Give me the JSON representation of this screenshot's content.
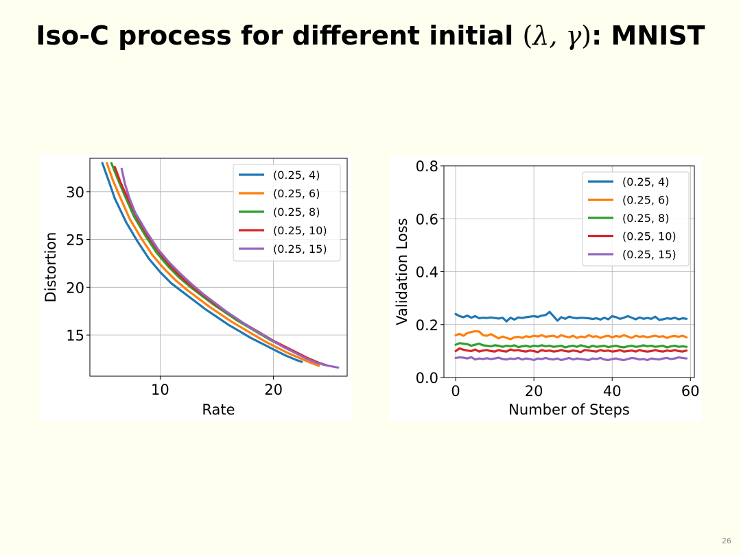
{
  "slide": {
    "title_prefix": "Iso-C process for different initial ",
    "title_math_open": "(",
    "title_math_vars": "λ, γ",
    "title_math_close": ")",
    "title_suffix": ": MNIST",
    "page_number": "26"
  },
  "colors": [
    "#1f77b4",
    "#ff7f0e",
    "#2ca02c",
    "#d62728",
    "#9467bd"
  ],
  "chart_data": [
    {
      "type": "line",
      "title": "",
      "xlabel": "Rate",
      "ylabel": "Distortion",
      "xlim": [
        3.8,
        26.5
      ],
      "ylim": [
        10.7,
        33.5
      ],
      "xticks": [
        10,
        20
      ],
      "yticks": [
        15,
        20,
        25,
        30
      ],
      "grid": true,
      "legend_position": "top-right",
      "series": [
        {
          "name": "(0.25, 4)",
          "x": [
            4.9,
            5.5,
            6.0,
            7.0,
            8.0,
            9.0,
            10.0,
            11.0,
            12.0,
            13.0,
            14.0,
            15.0,
            16.0,
            17.0,
            18.0,
            19.0,
            20.0,
            21.0,
            22.0,
            22.5
          ],
          "y": [
            33.0,
            31.0,
            29.3,
            26.8,
            24.8,
            23.0,
            21.6,
            20.4,
            19.5,
            18.6,
            17.7,
            16.9,
            16.1,
            15.4,
            14.7,
            14.1,
            13.5,
            12.9,
            12.4,
            12.2
          ]
        },
        {
          "name": "(0.25, 6)",
          "x": [
            5.3,
            5.8,
            6.4,
            7.3,
            8.3,
            9.3,
            10.3,
            11.3,
            12.3,
            13.3,
            14.3,
            15.3,
            16.3,
            17.3,
            18.3,
            19.3,
            20.3,
            21.3,
            22.3,
            23.3,
            24.0
          ],
          "y": [
            33.0,
            31.3,
            29.6,
            27.2,
            25.2,
            23.4,
            22.0,
            20.8,
            19.8,
            18.9,
            18.0,
            17.2,
            16.4,
            15.7,
            15.0,
            14.3,
            13.7,
            13.1,
            12.6,
            12.1,
            11.8
          ]
        },
        {
          "name": "(0.25, 8)",
          "x": [
            5.7,
            6.2,
            6.8,
            7.7,
            8.7,
            9.7,
            10.7,
            11.7,
            12.7,
            13.7,
            14.7,
            15.7,
            16.7,
            17.7,
            18.7,
            19.7,
            20.7,
            21.7,
            22.7,
            23.7,
            24.4
          ],
          "y": [
            33.0,
            31.5,
            29.8,
            27.4,
            25.4,
            23.6,
            22.2,
            21.0,
            20.0,
            19.1,
            18.2,
            17.4,
            16.6,
            15.9,
            15.2,
            14.5,
            13.9,
            13.3,
            12.7,
            12.2,
            11.9
          ]
        },
        {
          "name": "(0.25, 10)",
          "x": [
            6.0,
            6.5,
            7.1,
            8.0,
            9.0,
            10.0,
            11.0,
            12.0,
            13.0,
            14.0,
            15.0,
            16.0,
            17.0,
            18.0,
            19.0,
            20.0,
            21.0,
            22.0,
            23.0,
            24.0,
            24.8
          ],
          "y": [
            32.6,
            31.0,
            29.4,
            27.2,
            25.2,
            23.5,
            22.1,
            20.9,
            19.9,
            19.0,
            18.1,
            17.3,
            16.5,
            15.8,
            15.1,
            14.4,
            13.8,
            13.2,
            12.6,
            12.1,
            11.8
          ]
        },
        {
          "name": "(0.25, 15)",
          "x": [
            6.6,
            6.9,
            7.3,
            7.8,
            8.8,
            9.8,
            10.8,
            11.8,
            12.8,
            13.8,
            14.8,
            15.8,
            16.8,
            17.8,
            18.8,
            19.8,
            20.8,
            21.8,
            22.8,
            23.8,
            24.8,
            25.7
          ],
          "y": [
            32.4,
            30.8,
            29.3,
            27.8,
            25.8,
            24.0,
            22.6,
            21.4,
            20.3,
            19.3,
            18.4,
            17.5,
            16.7,
            15.9,
            15.2,
            14.5,
            13.8,
            13.2,
            12.6,
            12.1,
            11.8,
            11.6
          ]
        }
      ]
    },
    {
      "type": "line",
      "title": "",
      "xlabel": "Number of Steps",
      "ylabel": "Validation Loss",
      "xlim": [
        -3,
        61
      ],
      "ylim": [
        0.0,
        0.8
      ],
      "xticks": [
        0,
        20,
        40,
        60
      ],
      "yticks": [
        0.0,
        0.2,
        0.4,
        0.6,
        0.8
      ],
      "grid": true,
      "legend_position": "top-right",
      "series": [
        {
          "name": "(0.25, 4)",
          "x": [
            0,
            1,
            2,
            3,
            4,
            5,
            6,
            7,
            8,
            9,
            10,
            11,
            12,
            13,
            14,
            15,
            16,
            17,
            18,
            19,
            20,
            21,
            22,
            23,
            24,
            25,
            26,
            27,
            28,
            29,
            30,
            31,
            32,
            33,
            34,
            35,
            36,
            37,
            38,
            39,
            40,
            41,
            42,
            43,
            44,
            45,
            46,
            47,
            48,
            49,
            50,
            51,
            52,
            53,
            54,
            55,
            56,
            57,
            58,
            59
          ],
          "y": [
            0.24,
            0.232,
            0.228,
            0.234,
            0.226,
            0.232,
            0.224,
            0.226,
            0.225,
            0.227,
            0.225,
            0.223,
            0.226,
            0.212,
            0.226,
            0.219,
            0.227,
            0.225,
            0.228,
            0.23,
            0.232,
            0.229,
            0.234,
            0.236,
            0.248,
            0.232,
            0.215,
            0.228,
            0.222,
            0.23,
            0.226,
            0.224,
            0.226,
            0.225,
            0.224,
            0.221,
            0.224,
            0.219,
            0.226,
            0.22,
            0.232,
            0.228,
            0.222,
            0.226,
            0.232,
            0.226,
            0.22,
            0.227,
            0.222,
            0.225,
            0.222,
            0.23,
            0.218,
            0.22,
            0.224,
            0.222,
            0.226,
            0.22,
            0.224,
            0.222
          ]
        },
        {
          "name": "(0.25, 6)",
          "x": [
            0,
            1,
            2,
            3,
            4,
            5,
            6,
            7,
            8,
            9,
            10,
            11,
            12,
            13,
            14,
            15,
            16,
            17,
            18,
            19,
            20,
            21,
            22,
            23,
            24,
            25,
            26,
            27,
            28,
            29,
            30,
            31,
            32,
            33,
            34,
            35,
            36,
            37,
            38,
            39,
            40,
            41,
            42,
            43,
            44,
            45,
            46,
            47,
            48,
            49,
            50,
            51,
            52,
            53,
            54,
            55,
            56,
            57,
            58,
            59
          ],
          "y": [
            0.16,
            0.165,
            0.158,
            0.168,
            0.172,
            0.175,
            0.174,
            0.16,
            0.158,
            0.164,
            0.156,
            0.148,
            0.155,
            0.15,
            0.145,
            0.152,
            0.154,
            0.15,
            0.156,
            0.153,
            0.158,
            0.155,
            0.16,
            0.154,
            0.156,
            0.158,
            0.152,
            0.16,
            0.155,
            0.152,
            0.158,
            0.15,
            0.155,
            0.152,
            0.16,
            0.154,
            0.156,
            0.15,
            0.155,
            0.158,
            0.152,
            0.157,
            0.154,
            0.16,
            0.155,
            0.15,
            0.158,
            0.154,
            0.156,
            0.152,
            0.155,
            0.158,
            0.154,
            0.156,
            0.15,
            0.155,
            0.157,
            0.154,
            0.158,
            0.152
          ]
        },
        {
          "name": "(0.25, 8)",
          "x": [
            0,
            1,
            2,
            3,
            4,
            5,
            6,
            7,
            8,
            9,
            10,
            11,
            12,
            13,
            14,
            15,
            16,
            17,
            18,
            19,
            20,
            21,
            22,
            23,
            24,
            25,
            26,
            27,
            28,
            29,
            30,
            31,
            32,
            33,
            34,
            35,
            36,
            37,
            38,
            39,
            40,
            41,
            42,
            43,
            44,
            45,
            46,
            47,
            48,
            49,
            50,
            51,
            52,
            53,
            54,
            55,
            56,
            57,
            58,
            59
          ],
          "y": [
            0.124,
            0.13,
            0.128,
            0.126,
            0.12,
            0.124,
            0.128,
            0.122,
            0.12,
            0.118,
            0.122,
            0.12,
            0.116,
            0.12,
            0.118,
            0.122,
            0.115,
            0.118,
            0.12,
            0.116,
            0.12,
            0.118,
            0.122,
            0.118,
            0.12,
            0.116,
            0.118,
            0.12,
            0.114,
            0.118,
            0.12,
            0.116,
            0.122,
            0.118,
            0.114,
            0.12,
            0.116,
            0.118,
            0.12,
            0.115,
            0.118,
            0.12,
            0.116,
            0.114,
            0.118,
            0.12,
            0.116,
            0.118,
            0.122,
            0.118,
            0.12,
            0.116,
            0.118,
            0.12,
            0.114,
            0.118,
            0.12,
            0.116,
            0.118,
            0.116
          ]
        },
        {
          "name": "(0.25, 10)",
          "x": [
            0,
            1,
            2,
            3,
            4,
            5,
            6,
            7,
            8,
            9,
            10,
            11,
            12,
            13,
            14,
            15,
            16,
            17,
            18,
            19,
            20,
            21,
            22,
            23,
            24,
            25,
            26,
            27,
            28,
            29,
            30,
            31,
            32,
            33,
            34,
            35,
            36,
            37,
            38,
            39,
            40,
            41,
            42,
            43,
            44,
            45,
            46,
            47,
            48,
            49,
            50,
            51,
            52,
            53,
            54,
            55,
            56,
            57,
            58,
            59
          ],
          "y": [
            0.1,
            0.11,
            0.105,
            0.102,
            0.1,
            0.106,
            0.098,
            0.102,
            0.104,
            0.1,
            0.098,
            0.104,
            0.1,
            0.098,
            0.106,
            0.102,
            0.104,
            0.1,
            0.098,
            0.102,
            0.1,
            0.096,
            0.104,
            0.1,
            0.102,
            0.098,
            0.1,
            0.104,
            0.1,
            0.098,
            0.102,
            0.1,
            0.096,
            0.104,
            0.102,
            0.1,
            0.098,
            0.104,
            0.1,
            0.102,
            0.098,
            0.1,
            0.104,
            0.098,
            0.1,
            0.102,
            0.098,
            0.104,
            0.1,
            0.098,
            0.1,
            0.104,
            0.1,
            0.098,
            0.102,
            0.1,
            0.104,
            0.1,
            0.098,
            0.102
          ]
        },
        {
          "name": "(0.25, 15)",
          "x": [
            0,
            1,
            2,
            3,
            4,
            5,
            6,
            7,
            8,
            9,
            10,
            11,
            12,
            13,
            14,
            15,
            16,
            17,
            18,
            19,
            20,
            21,
            22,
            23,
            24,
            25,
            26,
            27,
            28,
            29,
            30,
            31,
            32,
            33,
            34,
            35,
            36,
            37,
            38,
            39,
            40,
            41,
            42,
            43,
            44,
            45,
            46,
            47,
            48,
            49,
            50,
            51,
            52,
            53,
            54,
            55,
            56,
            57,
            58,
            59
          ],
          "y": [
            0.074,
            0.076,
            0.075,
            0.072,
            0.077,
            0.068,
            0.072,
            0.07,
            0.073,
            0.07,
            0.072,
            0.075,
            0.07,
            0.068,
            0.072,
            0.07,
            0.074,
            0.068,
            0.072,
            0.07,
            0.066,
            0.072,
            0.07,
            0.074,
            0.07,
            0.068,
            0.072,
            0.066,
            0.07,
            0.074,
            0.068,
            0.072,
            0.07,
            0.068,
            0.066,
            0.072,
            0.07,
            0.074,
            0.068,
            0.066,
            0.07,
            0.072,
            0.068,
            0.066,
            0.07,
            0.074,
            0.072,
            0.068,
            0.07,
            0.066,
            0.072,
            0.07,
            0.068,
            0.072,
            0.074,
            0.07,
            0.072,
            0.076,
            0.074,
            0.072
          ]
        }
      ]
    }
  ]
}
